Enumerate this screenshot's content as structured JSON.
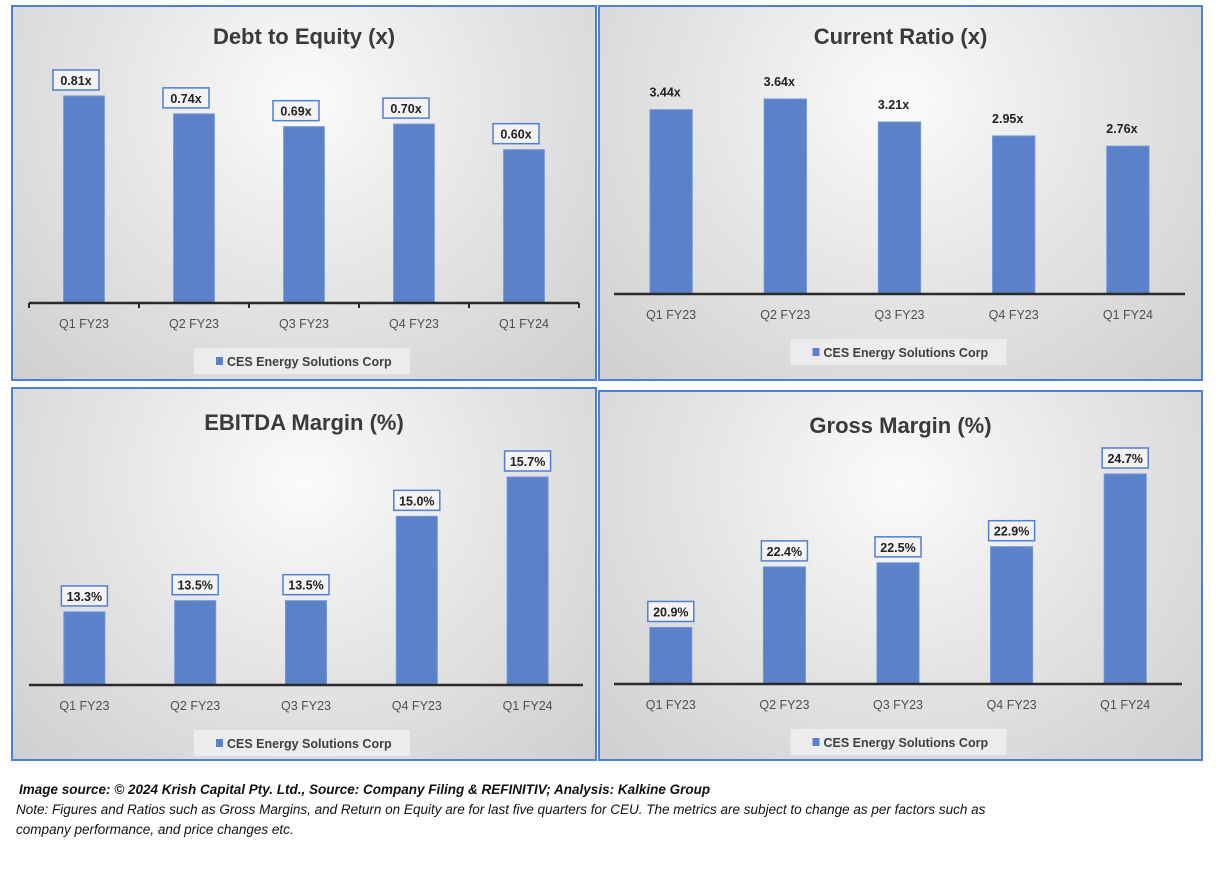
{
  "chart_data": [
    {
      "type": "bar",
      "title": "Debt to Equity (x)",
      "categories": [
        "Q1 FY23",
        "Q2 FY23",
        "Q3 FY23",
        "Q4 FY23",
        "Q1 FY24"
      ],
      "series": [
        {
          "name": "CES Energy Solutions Corp",
          "values": [
            0.81,
            0.74,
            0.69,
            0.7,
            0.6
          ]
        }
      ],
      "data_labels": [
        "0.81x",
        "0.74x",
        "0.69x",
        "0.70x",
        "0.60x"
      ],
      "boxed_labels": true,
      "tick_marks": true,
      "xlabel": "",
      "ylabel": "",
      "ylim": [
        0,
        0.81
      ],
      "legend": "bottom",
      "grid": false,
      "color": "#5b82c9"
    },
    {
      "type": "bar",
      "title": "Current Ratio (x)",
      "categories": [
        "Q1 FY23",
        "Q2 FY23",
        "Q3 FY23",
        "Q4 FY23",
        "Q1 FY24"
      ],
      "series": [
        {
          "name": "CES Energy Solutions Corp",
          "values": [
            3.44,
            3.64,
            3.21,
            2.95,
            2.76
          ]
        }
      ],
      "data_labels": [
        "3.44x",
        "3.64x",
        "3.21x",
        "2.95x",
        "2.76x"
      ],
      "boxed_labels": false,
      "tick_marks": false,
      "xlabel": "",
      "ylabel": "",
      "ylim": [
        0,
        3.64
      ],
      "legend": "bottom",
      "grid": false,
      "color": "#5b82c9"
    },
    {
      "type": "bar",
      "title": "EBITDA Margin (%)",
      "categories": [
        "Q1 FY23",
        "Q2 FY23",
        "Q3 FY23",
        "Q4 FY23",
        "Q1 FY24"
      ],
      "series": [
        {
          "name": "CES Energy Solutions Corp",
          "values": [
            13.3,
            13.5,
            13.5,
            15.0,
            15.7
          ]
        }
      ],
      "data_labels": [
        "13.3%",
        "13.5%",
        "13.5%",
        "15.0%",
        "15.7%"
      ],
      "boxed_labels": true,
      "tick_marks": false,
      "xlabel": "",
      "ylabel": "",
      "ylim": [
        12.0,
        15.7
      ],
      "legend": "bottom",
      "grid": false,
      "color": "#5b82c9"
    },
    {
      "type": "bar",
      "title": "Gross Margin (%)",
      "categories": [
        "Q1 FY23",
        "Q2 FY23",
        "Q3 FY23",
        "Q4 FY23",
        "Q1 FY24"
      ],
      "series": [
        {
          "name": "CES Energy Solutions Corp",
          "values": [
            20.9,
            22.4,
            22.5,
            22.9,
            24.7
          ]
        }
      ],
      "data_labels": [
        "20.9%",
        "22.4%",
        "22.5%",
        "22.9%",
        "24.7%"
      ],
      "boxed_labels": true,
      "tick_marks": false,
      "xlabel": "",
      "ylabel": "",
      "ylim": [
        19.5,
        24.7
      ],
      "legend": "bottom",
      "grid": false,
      "color": "#5b82c9"
    }
  ],
  "footer": {
    "source": "Image source: © 2024 Krish Capital Pty. Ltd., Source: Company Filing & REFINITIV; Analysis: Kalkine Group",
    "note_line1": "Note: Figures and Ratios such as  Gross Margins, and Return on Equity are for last five quarters for CEU. The metrics are subject to change as per factors such as",
    "note_line2": "company performance, and price changes etc."
  }
}
